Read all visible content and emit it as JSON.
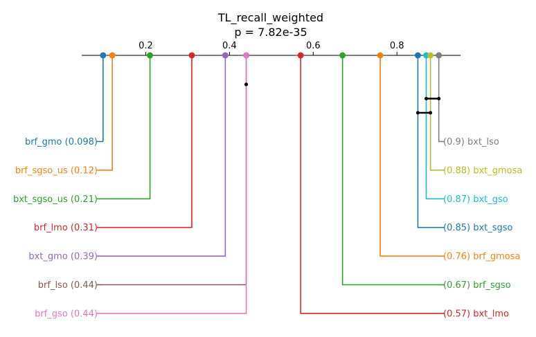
{
  "chart_data": {
    "type": "critical-difference",
    "title": "TL_recall_weighted",
    "subtitle": "p = 7.82e-35",
    "axis": {
      "range": [
        0.01,
        0.92
      ],
      "ticks": [
        0.2,
        0.4,
        0.6,
        0.8
      ],
      "tick_labels": [
        "0.2",
        "0.4",
        "0.6",
        "0.8"
      ]
    },
    "left_methods": [
      {
        "name": "brf_gmo",
        "value": 0.098,
        "label": "brf_gmo (0.098)",
        "color": "#1f77b4"
      },
      {
        "name": "brf_sgso_us",
        "value": 0.12,
        "label": "brf_sgso_us (0.12)",
        "color": "#ff7f0e"
      },
      {
        "name": "bxt_sgso_us",
        "value": 0.21,
        "label": "bxt_sgso_us (0.21)",
        "color": "#2ca02c"
      },
      {
        "name": "brf_lmo",
        "value": 0.31,
        "label": "brf_lmo (0.31)",
        "color": "#d62728"
      },
      {
        "name": "bxt_gmo",
        "value": 0.39,
        "label": "bxt_gmo (0.39)",
        "color": "#9467bd"
      },
      {
        "name": "brf_lso",
        "value": 0.44,
        "label": "brf_lso (0.44)",
        "color": "#8c564b"
      },
      {
        "name": "brf_gso",
        "value": 0.44,
        "label": "brf_gso (0.44)",
        "color": "#e377c2"
      }
    ],
    "right_methods": [
      {
        "name": "bxt_lso",
        "value": 0.9,
        "label": "(0.9) bxt_lso",
        "color": "#7f7f7f"
      },
      {
        "name": "bxt_gmosa",
        "value": 0.88,
        "label": "(0.88) bxt_gmosa",
        "color": "#bcbd22"
      },
      {
        "name": "bxt_gso",
        "value": 0.87,
        "label": "(0.87) bxt_gso",
        "color": "#17becf"
      },
      {
        "name": "bxt_sgso",
        "value": 0.85,
        "label": "(0.85) bxt_sgso",
        "color": "#1f77b4"
      },
      {
        "name": "brf_gmosa",
        "value": 0.76,
        "label": "(0.76) brf_gmosa",
        "color": "#ff7f0e"
      },
      {
        "name": "brf_sgso",
        "value": 0.67,
        "label": "(0.67) brf_sgso",
        "color": "#2ca02c"
      },
      {
        "name": "bxt_lmo",
        "value": 0.57,
        "label": "(0.57) bxt_lmo",
        "color": "#d62728"
      }
    ],
    "cliques": [
      {
        "from": 0.44,
        "to": 0.44
      },
      {
        "from": 0.87,
        "to": 0.9
      },
      {
        "from": 0.85,
        "to": 0.88
      }
    ]
  }
}
